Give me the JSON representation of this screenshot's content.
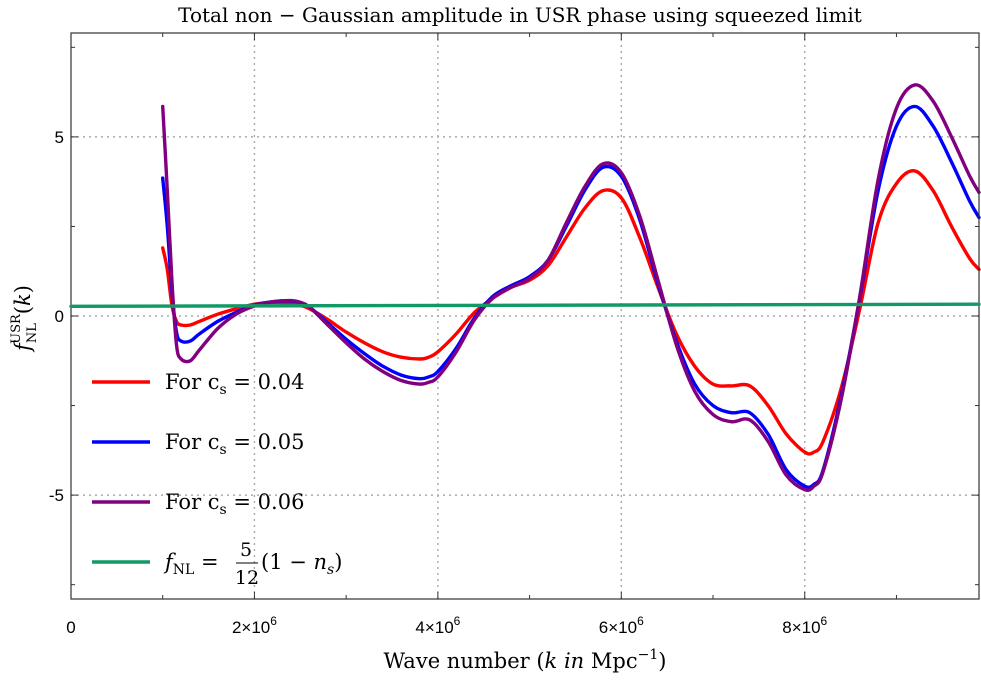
{
  "colors": {
    "cs_004": "#ff0000",
    "cs_005": "#0000ff",
    "cs_006": "#800080",
    "fnl": "#119966",
    "grid": "#aaaaaa",
    "axis": "#333333"
  },
  "chart_data": {
    "type": "line",
    "title": "Total non −  Gaussian amplitude in USR phase using squeezed limit",
    "xlabel": "Wave number (k in Mpc⁻¹)",
    "ylabel": "f_NL^USR(k)",
    "xlim": [
      0,
      9900000
    ],
    "ylim": [
      -7.9,
      7.9
    ],
    "x_ticks": [
      {
        "value": 0,
        "label": "0"
      },
      {
        "value": 2000000,
        "mantissa": "2×10",
        "exp": "6"
      },
      {
        "value": 4000000,
        "mantissa": "4×10",
        "exp": "6"
      },
      {
        "value": 6000000,
        "mantissa": "6×10",
        "exp": "6"
      },
      {
        "value": 8000000,
        "mantissa": "8×10",
        "exp": "6"
      }
    ],
    "y_ticks": [
      {
        "value": 5,
        "label": "5"
      },
      {
        "value": 0,
        "label": "0"
      },
      {
        "value": -5,
        "label": "-5"
      }
    ],
    "grid": true,
    "legend_position": "left",
    "series": [
      {
        "name": "For cs = 0.04",
        "legend_prefix": "For c",
        "legend_sub": "s",
        "legend_suffix": " = 0.04",
        "color_key": "cs_004",
        "x": [
          1000000,
          1050000,
          1100000,
          1150000,
          1200000,
          1300000,
          1400000,
          1600000,
          1800000,
          2000000,
          2200000,
          2400000,
          2500000,
          2600000,
          2800000,
          3000000,
          3200000,
          3400000,
          3600000,
          3800000,
          3900000,
          4000000,
          4200000,
          4400000,
          4600000,
          4800000,
          5000000,
          5200000,
          5400000,
          5600000,
          5800000,
          6000000,
          6200000,
          6400000,
          6600000,
          6800000,
          7000000,
          7200000,
          7400000,
          7600000,
          7800000,
          8000000,
          8100000,
          8200000,
          8400000,
          8600000,
          8800000,
          9000000,
          9200000,
          9400000,
          9600000,
          9800000,
          9900000
        ],
        "y": [
          1.9,
          1.3,
          0.3,
          -0.15,
          -0.25,
          -0.25,
          -0.15,
          0.05,
          0.2,
          0.33,
          0.38,
          0.35,
          0.3,
          0.2,
          -0.1,
          -0.45,
          -0.75,
          -1.0,
          -1.15,
          -1.2,
          -1.15,
          -1.0,
          -0.5,
          0.1,
          0.5,
          0.8,
          1.0,
          1.4,
          2.2,
          3.0,
          3.5,
          3.3,
          2.2,
          0.8,
          -0.5,
          -1.4,
          -1.9,
          -1.95,
          -1.95,
          -2.5,
          -3.3,
          -3.8,
          -3.8,
          -3.5,
          -2.0,
          0.2,
          2.6,
          3.7,
          4.05,
          3.5,
          2.5,
          1.6,
          1.3
        ]
      },
      {
        "name": "For cs = 0.05",
        "legend_prefix": "For c",
        "legend_sub": "s",
        "legend_suffix": " = 0.05",
        "color_key": "cs_005",
        "x": [
          1000000,
          1050000,
          1100000,
          1150000,
          1200000,
          1300000,
          1400000,
          1600000,
          1800000,
          2000000,
          2200000,
          2400000,
          2500000,
          2600000,
          2800000,
          3000000,
          3200000,
          3400000,
          3600000,
          3800000,
          3900000,
          4000000,
          4200000,
          4400000,
          4600000,
          4800000,
          5000000,
          5200000,
          5400000,
          5600000,
          5800000,
          6000000,
          6200000,
          6400000,
          6600000,
          6800000,
          7000000,
          7200000,
          7400000,
          7600000,
          7800000,
          8000000,
          8100000,
          8200000,
          8400000,
          8600000,
          8800000,
          9000000,
          9200000,
          9400000,
          9600000,
          9800000,
          9900000
        ],
        "y": [
          3.85,
          2.5,
          0.7,
          -0.45,
          -0.7,
          -0.7,
          -0.5,
          -0.15,
          0.1,
          0.3,
          0.4,
          0.42,
          0.38,
          0.25,
          -0.2,
          -0.65,
          -1.05,
          -1.4,
          -1.65,
          -1.75,
          -1.7,
          -1.55,
          -0.9,
          -0.05,
          0.55,
          0.85,
          1.1,
          1.55,
          2.5,
          3.5,
          4.15,
          3.9,
          2.7,
          0.9,
          -0.7,
          -1.9,
          -2.5,
          -2.7,
          -2.7,
          -3.3,
          -4.3,
          -4.75,
          -4.7,
          -4.3,
          -2.2,
          0.5,
          3.5,
          5.3,
          5.85,
          5.3,
          4.3,
          3.2,
          2.75
        ]
      },
      {
        "name": "For cs = 0.06",
        "legend_prefix": "For c",
        "legend_sub": "s",
        "legend_suffix": " = 0.06",
        "color_key": "cs_006",
        "x": [
          1000000,
          1050000,
          1100000,
          1150000,
          1200000,
          1300000,
          1400000,
          1600000,
          1800000,
          2000000,
          2200000,
          2400000,
          2500000,
          2600000,
          2800000,
          3000000,
          3200000,
          3400000,
          3600000,
          3800000,
          3900000,
          4000000,
          4200000,
          4400000,
          4600000,
          4800000,
          5000000,
          5200000,
          5400000,
          5600000,
          5800000,
          6000000,
          6200000,
          6400000,
          6600000,
          6800000,
          7000000,
          7200000,
          7400000,
          7600000,
          7800000,
          8000000,
          8100000,
          8200000,
          8400000,
          8600000,
          8800000,
          9000000,
          9200000,
          9400000,
          9600000,
          9800000,
          9900000
        ],
        "y": [
          5.85,
          3.5,
          1.0,
          -0.8,
          -1.2,
          -1.25,
          -0.95,
          -0.35,
          0.05,
          0.28,
          0.4,
          0.43,
          0.38,
          0.25,
          -0.25,
          -0.75,
          -1.2,
          -1.55,
          -1.8,
          -1.9,
          -1.85,
          -1.7,
          -1.0,
          -0.1,
          0.5,
          0.8,
          1.05,
          1.55,
          2.6,
          3.6,
          4.25,
          4.0,
          2.8,
          1.0,
          -0.8,
          -2.1,
          -2.75,
          -2.95,
          -2.9,
          -3.5,
          -4.45,
          -4.85,
          -4.75,
          -4.35,
          -2.3,
          0.55,
          3.8,
          5.8,
          6.45,
          6.0,
          5.0,
          3.9,
          3.45
        ]
      },
      {
        "name": "fNL = 5/12 (1 − ns)",
        "legend_math": true,
        "color_key": "fnl",
        "x": [
          0,
          9900000
        ],
        "y": [
          0.27,
          0.33
        ]
      }
    ]
  }
}
